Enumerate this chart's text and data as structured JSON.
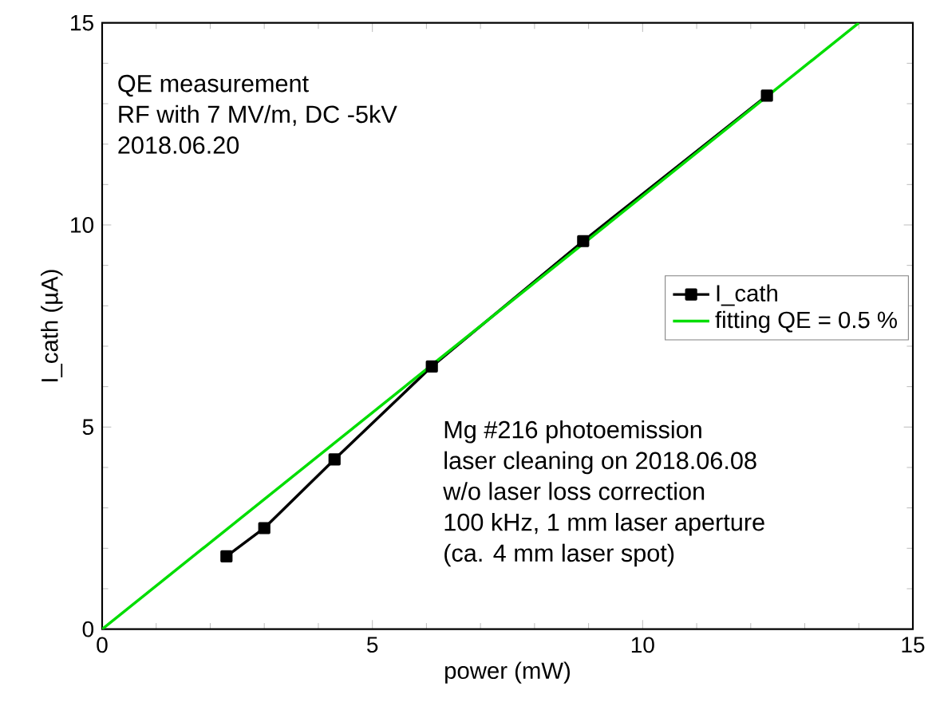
{
  "chart_data": {
    "type": "line",
    "xlabel": "power (mW)",
    "ylabel": "I_cath (µA)",
    "xlim": [
      0,
      15
    ],
    "ylim": [
      0,
      15
    ],
    "xticks": [
      0,
      5,
      10,
      15
    ],
    "yticks": [
      0,
      5,
      10,
      15
    ],
    "grid": false,
    "legend": "right",
    "series": [
      {
        "name": "I_cath",
        "color": "#000000",
        "marker": "square",
        "x": [
          2.3,
          3.0,
          4.3,
          6.1,
          8.9,
          12.3
        ],
        "values": [
          1.8,
          2.5,
          4.2,
          6.5,
          9.6,
          13.2
        ]
      },
      {
        "name": "fitting QE = 0.5 %",
        "color": "#00dd00",
        "marker": "none",
        "x": [
          0,
          14.0
        ],
        "values": [
          0,
          15
        ]
      }
    ],
    "annotations": [
      "QE measurement",
      "RF with 7 MV/m, DC -5kV",
      "2018.06.20",
      "Mg #216 photoemission",
      "laser cleaning on 2018.06.08",
      "w/o laser loss correction",
      "100 kHz, 1 mm laser aperture",
      "(ca. 4 mm laser spot)"
    ]
  }
}
